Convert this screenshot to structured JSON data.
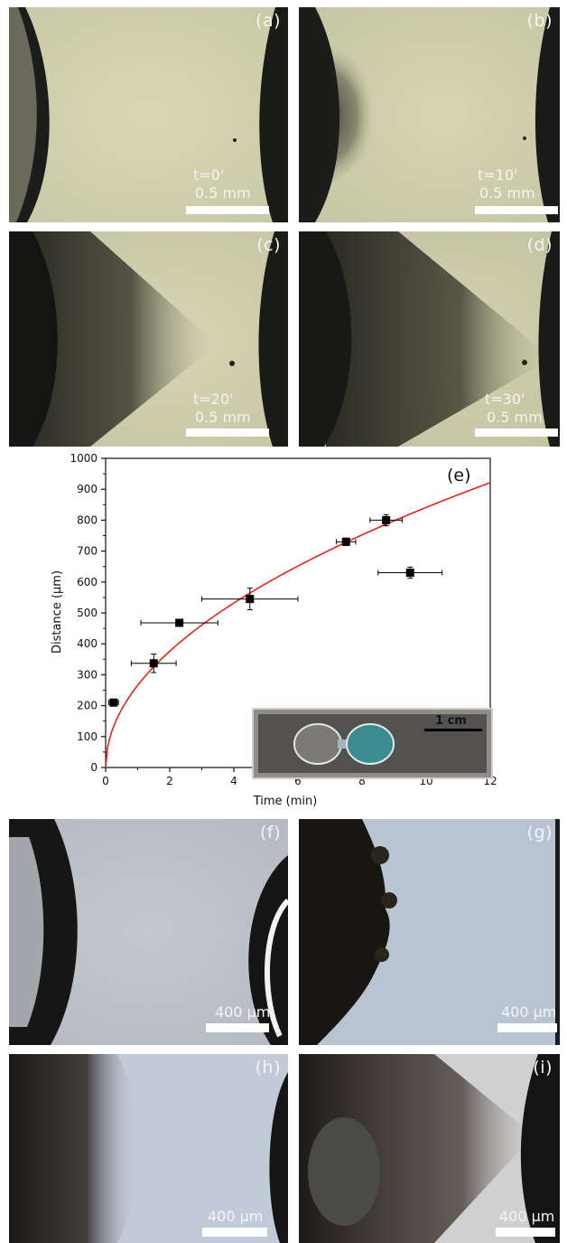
{
  "panels_top": [
    {
      "label": "(a)",
      "time": "t=0'",
      "scale": "0.5 mm"
    },
    {
      "label": "(b)",
      "time": "t=10'",
      "scale": "0.5 mm"
    },
    {
      "label": "(c)",
      "time": "t=20'",
      "scale": "0.5 mm"
    },
    {
      "label": "(d)",
      "time": "t=30'",
      "scale": "0.5 mm"
    }
  ],
  "panels_bottom": [
    {
      "label": "(f)",
      "scale": "400 μm"
    },
    {
      "label": "(g)",
      "scale": "400 μm"
    },
    {
      "label": "(h)",
      "scale": "400 μm"
    },
    {
      "label": "(i)",
      "scale": "400 μm"
    }
  ],
  "chart_data": {
    "type": "scatter",
    "panel_label": "(e)",
    "xlabel": "Time (min)",
    "ylabel": "Distance (μm)",
    "xlim": [
      0,
      12
    ],
    "ylim": [
      0,
      1000
    ],
    "xticks": [
      0,
      2,
      4,
      6,
      8,
      10,
      12
    ],
    "yticks": [
      0,
      100,
      200,
      300,
      400,
      500,
      600,
      700,
      800,
      900,
      1000
    ],
    "points": [
      {
        "x": 0.25,
        "y": 210,
        "xerr": 0.15,
        "yerr": 8
      },
      {
        "x": 1.5,
        "y": 337,
        "xerr": 0.7,
        "yerr": 30
      },
      {
        "x": 2.3,
        "y": 468,
        "xerr": 1.2,
        "yerr": 8
      },
      {
        "x": 4.5,
        "y": 545,
        "xerr": 1.5,
        "yerr": 35
      },
      {
        "x": 7.5,
        "y": 730,
        "xerr": 0.3,
        "yerr": 12
      },
      {
        "x": 8.75,
        "y": 800,
        "xerr": 0.5,
        "yerr": 18
      },
      {
        "x": 9.5,
        "y": 630,
        "xerr": 1.0,
        "yerr": 18
      }
    ],
    "fit": {
      "type": "sqrt",
      "coefficient": 266,
      "color": "#e8231c"
    },
    "marker_color": "#000000",
    "inset_scale_label": "1 cm"
  }
}
